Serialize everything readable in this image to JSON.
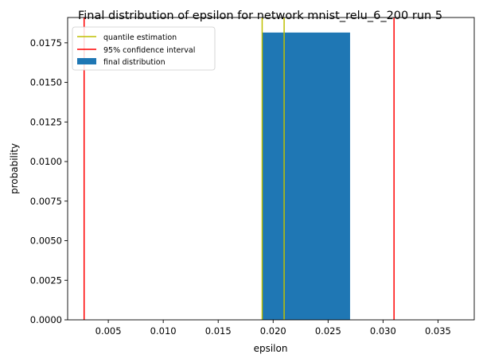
{
  "chart_data": {
    "type": "bar",
    "title": "Final distribution of epsilon for network mnist_relu_6_200 run 5",
    "xlabel": "epsilon",
    "ylabel": "probability",
    "xlim": [
      0.0013,
      0.0383
    ],
    "ylim": [
      0.0,
      0.0191
    ],
    "x_ticks": [
      0.005,
      0.01,
      0.015,
      0.02,
      0.025,
      0.03,
      0.035
    ],
    "x_tick_labels": [
      "0.005",
      "0.010",
      "0.015",
      "0.020",
      "0.025",
      "0.030",
      "0.035"
    ],
    "y_ticks": [
      0.0,
      0.0025,
      0.005,
      0.0075,
      0.01,
      0.0125,
      0.015,
      0.0175
    ],
    "y_tick_labels": [
      "0.0000",
      "0.0025",
      "0.0050",
      "0.0075",
      "0.0100",
      "0.0125",
      "0.0150",
      "0.0175"
    ],
    "bars": [
      {
        "x0": 0.019,
        "x1": 0.027,
        "value": 0.01815
      }
    ],
    "quantile_lines": [
      0.019,
      0.021
    ],
    "confidence_lines": [
      0.0028,
      0.031
    ],
    "legend": [
      {
        "label": "quantile estimation",
        "kind": "line",
        "color": "#bfbf00"
      },
      {
        "label": "95% confidence interval",
        "kind": "line",
        "color": "#ff0000"
      },
      {
        "label": "final distribution",
        "kind": "patch",
        "color": "#1f77b4"
      }
    ],
    "legend_position": "top-left",
    "grid": false
  },
  "colors": {
    "bar": "#1f77b4",
    "quantile": "#bfbf00",
    "confidence": "#ff0000",
    "axis": "#000000"
  }
}
